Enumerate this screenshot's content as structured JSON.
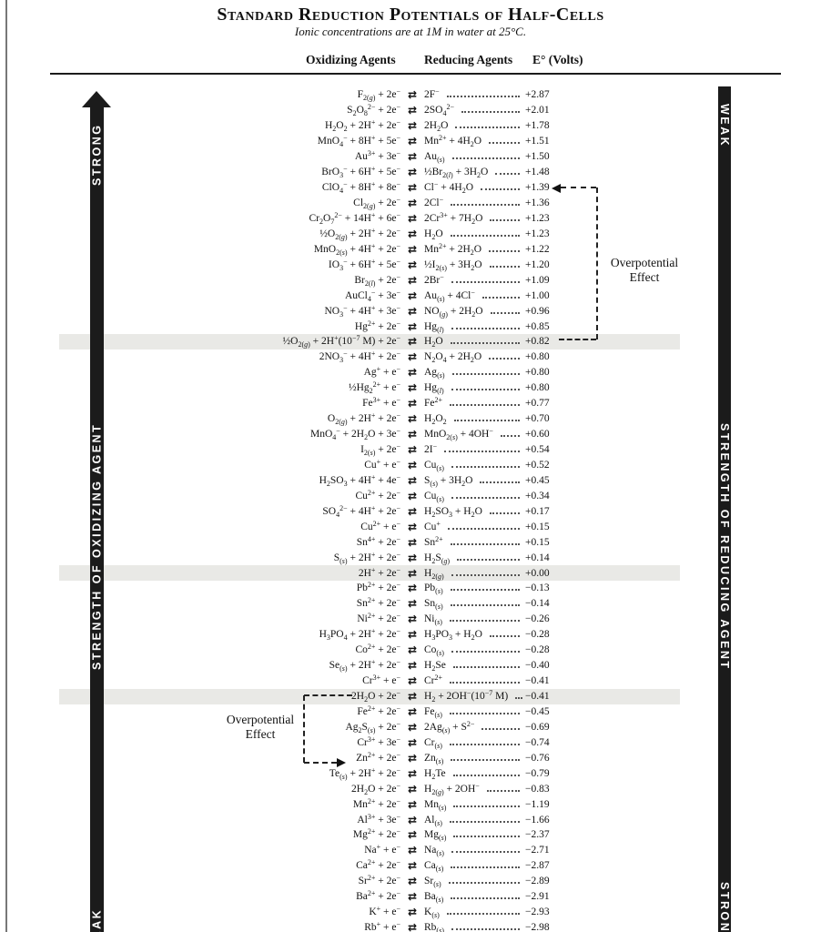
{
  "page": {
    "title": "Standard Reduction Potentials of Half-Cells",
    "subtitle": "Ionic concentrations are at 1M in water at 25°C.",
    "columns": {
      "oxidizing": "Oxidizing Agents",
      "reducing": "Reducing Agents",
      "potential": "E° (Volts)"
    }
  },
  "left_axis": {
    "direction": "up",
    "top": "STRONG",
    "middle": "STRENGTH OF OXIDIZING AGENT",
    "bottom": "WEAK"
  },
  "right_axis": {
    "direction": "down",
    "top": "WEAK",
    "middle": "STRENGTH OF REDUCING AGENT",
    "bottom": "STRONG"
  },
  "annotations": {
    "upper": {
      "line1": "Overpotential",
      "line2": "Effect",
      "points_to": "+1.39",
      "from_row": "+0.82"
    },
    "lower": {
      "line1": "Overpotential",
      "line2": "Effect",
      "points_to": "−0.76",
      "from_row": "−0.41"
    }
  },
  "equilibrium_symbol": "⇄",
  "colors": {
    "highlight_row": "#e9e9e6",
    "arrow_bar": "#1b1b1b",
    "text": "#111111"
  },
  "rows": [
    {
      "ox": "F_2(g)_ + 2e^−^",
      "red": "2F^−^",
      "e": "+2.87",
      "hl": false
    },
    {
      "ox": "S_2_O_8_^2−^ + 2e^−^",
      "red": "2SO_4_^2−^",
      "e": "+2.01",
      "hl": false
    },
    {
      "ox": "H_2_O_2_ + 2H^+^ + 2e^−^",
      "red": "2H_2_O",
      "e": "+1.78",
      "hl": false
    },
    {
      "ox": "MnO_4_^−^ + 8H^+^ + 5e^−^",
      "red": "Mn^2+^ + 4H_2_O",
      "e": "+1.51",
      "hl": false
    },
    {
      "ox": "Au^3+^ + 3e^−^",
      "red": "Au_(s)_",
      "e": "+1.50",
      "hl": false
    },
    {
      "ox": "BrO_3_^−^ + 6H^+^ + 5e^−^",
      "red": "½Br_2(l)_ + 3H_2_O",
      "e": "+1.48",
      "hl": false
    },
    {
      "ox": "ClO_4_^−^ + 8H^+^ + 8e^−^",
      "red": "Cl^−^ + 4H_2_O",
      "e": "+1.39",
      "hl": false
    },
    {
      "ox": "Cl_2(g)_ + 2e^−^",
      "red": "2Cl^−^",
      "e": "+1.36",
      "hl": false
    },
    {
      "ox": "Cr_2_O_7_^2−^ + 14H^+^ + 6e^−^",
      "red": "2Cr^3+^ + 7H_2_O",
      "e": "+1.23",
      "hl": false
    },
    {
      "ox": "½O_2(g)_ + 2H^+^ + 2e^−^",
      "red": "H_2_O",
      "e": "+1.23",
      "hl": false
    },
    {
      "ox": "MnO_2(s)_ + 4H^+^ + 2e^−^",
      "red": "Mn^2+^ + 2H_2_O",
      "e": "+1.22",
      "hl": false
    },
    {
      "ox": "IO_3_^−^ + 6H^+^ + 5e^−^",
      "red": "½I_2(s)_ + 3H_2_O",
      "e": "+1.20",
      "hl": false
    },
    {
      "ox": "Br_2(l)_ + 2e^−^",
      "red": "2Br^−^",
      "e": "+1.09",
      "hl": false
    },
    {
      "ox": "AuCl_4_^−^ + 3e^−^",
      "red": "Au_(s)_ + 4Cl^−^",
      "e": "+1.00",
      "hl": false
    },
    {
      "ox": "NO_3_^−^ + 4H^+^ + 3e^−^",
      "red": "NO_(g)_ + 2H_2_O",
      "e": "+0.96",
      "hl": false
    },
    {
      "ox": "Hg^2+^ + 2e^−^",
      "red": "Hg_(l)_",
      "e": "+0.85",
      "hl": false
    },
    {
      "ox": "½O_2(g)_ + 2H^+^(10^−7^ M) + 2e^−^",
      "red": "H_2_O",
      "e": "+0.82",
      "hl": true
    },
    {
      "ox": "2NO_3_^−^ + 4H^+^ + 2e^−^",
      "red": "N_2_O_4_ + 2H_2_O",
      "e": "+0.80",
      "hl": false
    },
    {
      "ox": "Ag^+^ + e^−^",
      "red": "Ag_(s)_",
      "e": "+0.80",
      "hl": false
    },
    {
      "ox": "½Hg_2_^2+^ + e^−^",
      "red": "Hg_(l)_",
      "e": "+0.80",
      "hl": false
    },
    {
      "ox": "Fe^3+^ + e^−^",
      "red": "Fe^2+^",
      "e": "+0.77",
      "hl": false
    },
    {
      "ox": "O_2(g)_ + 2H^+^ + 2e^−^",
      "red": "H_2_O_2_",
      "e": "+0.70",
      "hl": false
    },
    {
      "ox": "MnO_4_^−^ + 2H_2_O + 3e^−^",
      "red": "MnO_2(s)_ + 4OH^−^",
      "e": "+0.60",
      "hl": false
    },
    {
      "ox": "I_2(s)_ + 2e^−^",
      "red": "2I^−^",
      "e": "+0.54",
      "hl": false
    },
    {
      "ox": "Cu^+^ + e^−^",
      "red": "Cu_(s)_",
      "e": "+0.52",
      "hl": false
    },
    {
      "ox": "H_2_SO_3_ + 4H^+^ + 4e^−^",
      "red": "S_(s)_ + 3H_2_O",
      "e": "+0.45",
      "hl": false
    },
    {
      "ox": "Cu^2+^ + 2e^−^",
      "red": "Cu_(s)_",
      "e": "+0.34",
      "hl": false
    },
    {
      "ox": "SO_4_^2−^ + 4H^+^ + 2e^−^",
      "red": "H_2_SO_3_ + H_2_O",
      "e": "+0.17",
      "hl": false
    },
    {
      "ox": "Cu^2+^ + e^−^",
      "red": "Cu^+^",
      "e": "+0.15",
      "hl": false
    },
    {
      "ox": "Sn^4+^ + 2e^−^",
      "red": "Sn^2+^",
      "e": "+0.15",
      "hl": false
    },
    {
      "ox": "S_(s)_ + 2H^+^ + 2e^−^",
      "red": "H_2_S_(g)_",
      "e": "+0.14",
      "hl": false
    },
    {
      "ox": "2H^+^ + 2e^−^",
      "red": "H_2(g)_",
      "e": "+0.00",
      "hl": true
    },
    {
      "ox": "Pb^2+^ + 2e^−^",
      "red": "Pb_(s)_",
      "e": "−0.13",
      "hl": false
    },
    {
      "ox": "Sn^2+^ + 2e^−^",
      "red": "Sn_(s)_",
      "e": "−0.14",
      "hl": false
    },
    {
      "ox": "Ni^2+^ + 2e^−^",
      "red": "Ni_(s)_",
      "e": "−0.26",
      "hl": false
    },
    {
      "ox": "H_3_PO_4_ + 2H^+^ + 2e^−^",
      "red": "H_3_PO_3_ + H_2_O",
      "e": "−0.28",
      "hl": false
    },
    {
      "ox": "Co^2+^ + 2e^−^",
      "red": "Co_(s)_",
      "e": "−0.28",
      "hl": false
    },
    {
      "ox": "Se_(s)_ + 2H^+^ + 2e^−^",
      "red": "H_2_Se",
      "e": "−0.40",
      "hl": false
    },
    {
      "ox": "Cr^3+^ + e^−^",
      "red": "Cr^2+^",
      "e": "−0.41",
      "hl": false
    },
    {
      "ox": "2H_2_O + 2e^−^",
      "red": "H_2_ + 2OH^−^(10^−7^ M)",
      "e": "−0.41",
      "hl": true
    },
    {
      "ox": "Fe^2+^ + 2e^−^",
      "red": "Fe_(s)_",
      "e": "−0.45",
      "hl": false
    },
    {
      "ox": "Ag_2_S_(s)_ + 2e^−^",
      "red": "2Ag_(s)_ + S^2−^",
      "e": "−0.69",
      "hl": false
    },
    {
      "ox": "Cr^3+^ + 3e^−^",
      "red": "Cr_(s)_",
      "e": "−0.74",
      "hl": false
    },
    {
      "ox": "Zn^2+^ + 2e^−^",
      "red": "Zn_(s)_",
      "e": "−0.76",
      "hl": false
    },
    {
      "ox": "Te_(s)_ + 2H^+^ + 2e^−^",
      "red": "H_2_Te",
      "e": "−0.79",
      "hl": false
    },
    {
      "ox": "2H_2_O + 2e^−^",
      "red": "H_2(g)_ + 2OH^−^",
      "e": "−0.83",
      "hl": false
    },
    {
      "ox": "Mn^2+^ + 2e^−^",
      "red": "Mn_(s)_",
      "e": "−1.19",
      "hl": false
    },
    {
      "ox": "Al^3+^ + 3e^−^",
      "red": "Al_(s)_",
      "e": "−1.66",
      "hl": false
    },
    {
      "ox": "Mg^2+^ + 2e^−^",
      "red": "Mg_(s)_",
      "e": "−2.37",
      "hl": false
    },
    {
      "ox": "Na^+^ + e^−^",
      "red": "Na_(s)_",
      "e": "−2.71",
      "hl": false
    },
    {
      "ox": "Ca^2+^ + 2e^−^",
      "red": "Ca_(s)_",
      "e": "−2.87",
      "hl": false
    },
    {
      "ox": "Sr^2+^ + 2e^−^",
      "red": "Sr_(s)_",
      "e": "−2.89",
      "hl": false
    },
    {
      "ox": "Ba^2+^ + 2e^−^",
      "red": "Ba_(s)_",
      "e": "−2.91",
      "hl": false
    },
    {
      "ox": "K^+^ + e^−^",
      "red": "K_(s)_",
      "e": "−2.93",
      "hl": false
    },
    {
      "ox": "Rb^+^ + e^−^",
      "red": "Rb_(s)_",
      "e": "−2.98",
      "hl": false
    }
  ]
}
